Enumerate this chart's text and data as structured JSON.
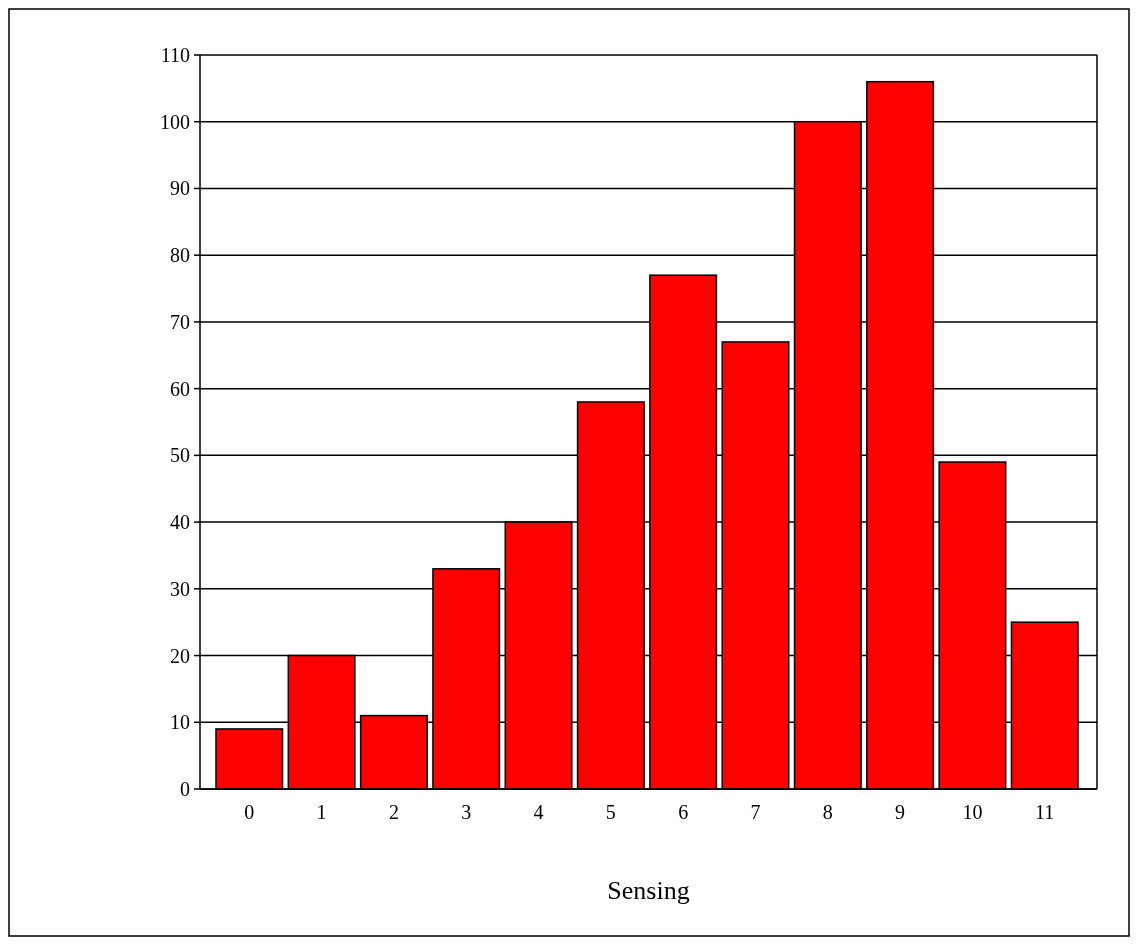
{
  "chart_data": {
    "type": "bar",
    "xlabel": "Sensing",
    "categories": [
      "0",
      "1",
      "2",
      "3",
      "4",
      "5",
      "6",
      "7",
      "8",
      "9",
      "10",
      "11"
    ],
    "values": [
      9,
      20,
      11,
      33,
      40,
      58,
      77,
      67,
      100,
      106,
      49,
      25
    ],
    "color": "#ff0000",
    "ylim": [
      0,
      110
    ],
    "yticks": [
      0,
      10,
      20,
      30,
      40,
      50,
      60,
      70,
      80,
      90,
      100,
      110
    ],
    "grid": "y"
  }
}
